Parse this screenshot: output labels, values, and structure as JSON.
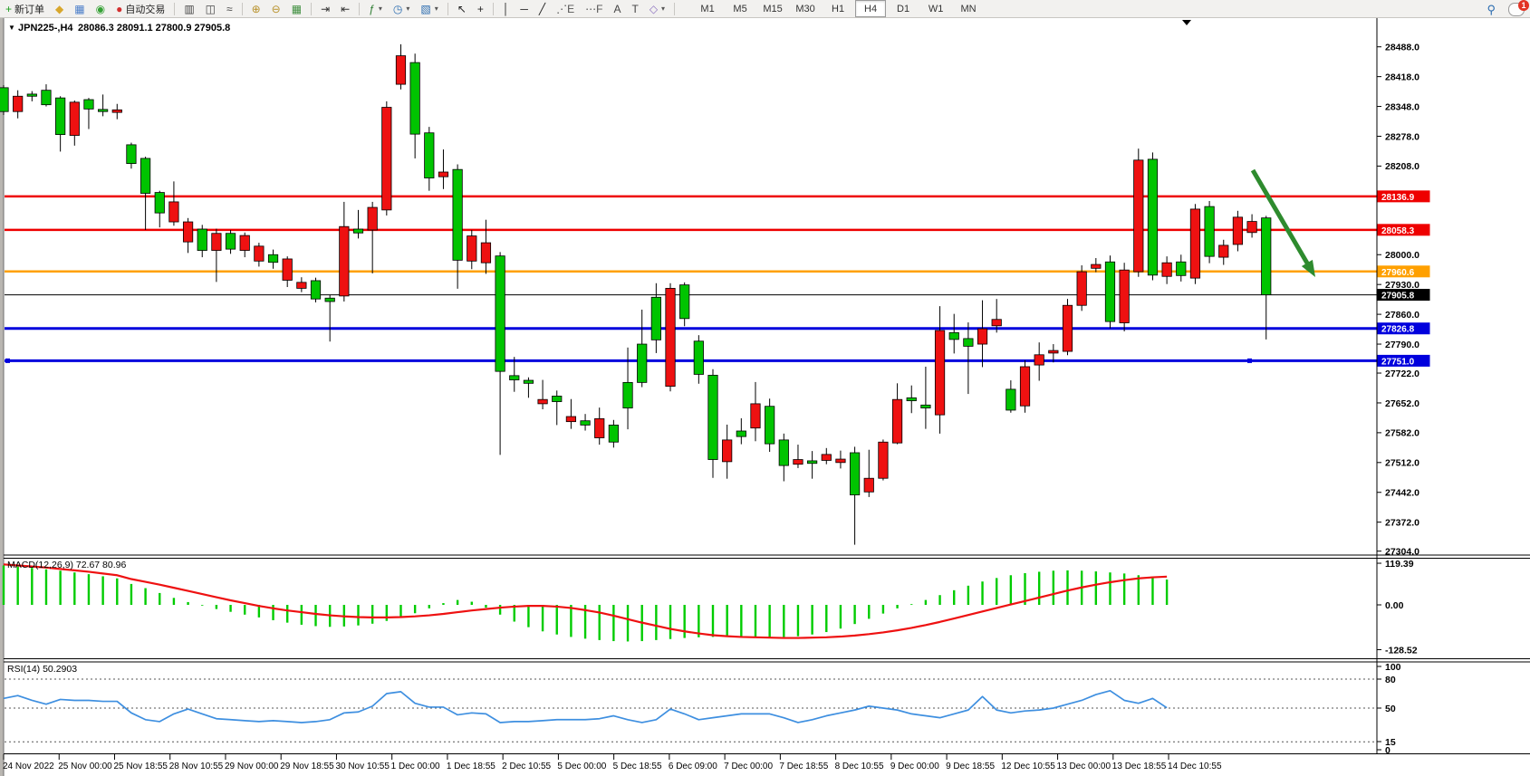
{
  "toolbar": {
    "items": [
      {
        "name": "new-order-button",
        "glyph": "+",
        "glyph_color": "#1e9e1e",
        "label": "新订单",
        "interactable": true
      },
      {
        "name": "styler-icon",
        "glyph": "◆",
        "glyph_color": "#d8a72c",
        "interactable": true
      },
      {
        "name": "charts-window-icon",
        "glyph": "▦",
        "glyph_color": "#4a7dc9",
        "interactable": true
      },
      {
        "name": "signals-icon",
        "glyph": "◉",
        "glyph_color": "#35a135",
        "interactable": true
      },
      {
        "name": "autotrading-button",
        "glyph": "●",
        "glyph_color": "#d32f2f",
        "label": "自动交易",
        "interactable": true
      },
      {
        "name": "sep",
        "sep": true
      },
      {
        "name": "bar-chart-button",
        "glyph": "▥",
        "glyph_color": "#444",
        "interactable": true
      },
      {
        "name": "candlestick-chart-button",
        "glyph": "◫",
        "glyph_color": "#444",
        "interactable": true
      },
      {
        "name": "line-chart-button",
        "glyph": "≈",
        "glyph_color": "#444",
        "interactable": true
      },
      {
        "name": "sep",
        "sep": true
      },
      {
        "name": "zoom-in-button",
        "glyph": "⊕",
        "glyph_color": "#b8912a",
        "interactable": true
      },
      {
        "name": "zoom-out-button",
        "glyph": "⊖",
        "glyph_color": "#b8912a",
        "interactable": true
      },
      {
        "name": "tile-windows-button",
        "glyph": "▦",
        "glyph_color": "#3f8f3f",
        "interactable": true
      },
      {
        "name": "sep",
        "sep": true
      },
      {
        "name": "auto-scroll-button",
        "glyph": "⇥",
        "glyph_color": "#333",
        "interactable": true
      },
      {
        "name": "chart-shift-button",
        "glyph": "⇤",
        "glyph_color": "#333",
        "interactable": true
      },
      {
        "name": "sep",
        "sep": true
      },
      {
        "name": "indicators-menu",
        "glyph": "ƒ",
        "glyph_color": "#2e7d32",
        "dropdown": true,
        "interactable": true
      },
      {
        "name": "periods-menu",
        "glyph": "◷",
        "glyph_color": "#2b6cb0",
        "dropdown": true,
        "interactable": true
      },
      {
        "name": "templates-menu",
        "glyph": "▧",
        "glyph_color": "#2b6cb0",
        "dropdown": true,
        "interactable": true
      },
      {
        "name": "sep",
        "sep": true
      },
      {
        "name": "cursor-tool",
        "glyph": "↖",
        "glyph_color": "#222",
        "interactable": true
      },
      {
        "name": "crosshair-tool",
        "glyph": "+",
        "glyph_color": "#222",
        "interactable": true
      },
      {
        "name": "sep",
        "sep": true
      },
      {
        "name": "vertical-line-tool",
        "glyph": "│",
        "glyph_color": "#222",
        "interactable": true
      },
      {
        "name": "horizontal-line-tool",
        "glyph": "─",
        "glyph_color": "#222",
        "interactable": true
      },
      {
        "name": "trendline-tool",
        "glyph": "╱",
        "glyph_color": "#222",
        "interactable": true
      },
      {
        "name": "channel-tool",
        "glyph": "⋰E",
        "glyph_color": "#555",
        "interactable": true
      },
      {
        "name": "fibonacci-tool",
        "glyph": "⋯F",
        "glyph_color": "#555",
        "interactable": true
      },
      {
        "name": "text-tool",
        "glyph": "A",
        "glyph_color": "#444",
        "interactable": true
      },
      {
        "name": "label-tool",
        "glyph": "T",
        "glyph_color": "#444",
        "interactable": true
      },
      {
        "name": "shapes-menu",
        "glyph": "◇",
        "glyph_color": "#8a6fbf",
        "dropdown": true,
        "interactable": true
      },
      {
        "name": "sep",
        "sep": true
      }
    ],
    "timeframes": [
      "M1",
      "M5",
      "M15",
      "M30",
      "H1",
      "H4",
      "D1",
      "W1",
      "MN"
    ],
    "active_timeframe": "H4",
    "search_icon_glyph": "⚲",
    "notification_count": "1"
  },
  "chart": {
    "title_symbol": "JPN225-,H4",
    "title_ohlc": "28086.3 28091.1 27800.9 27905.8",
    "dropdown_glyph": "▼"
  },
  "chart_data": {
    "type": "candlestick",
    "symbol": "JPN225-",
    "period": "H4",
    "ohlc_display": {
      "open": 28086.3,
      "high": 28091.1,
      "low": 27800.9,
      "close": 27905.8
    },
    "y_axis_labels": [
      "28488.0",
      "28418.0",
      "28348.0",
      "28278.0",
      "28208.0",
      "28000.0",
      "27930.0",
      "27860.0",
      "27790.0",
      "27722.0",
      "27652.0",
      "27582.0",
      "27512.0",
      "27442.0",
      "27372.0",
      "27304.0"
    ],
    "y_axis_prices": [
      28488,
      28418,
      28348,
      28278,
      28208,
      28000,
      27930,
      27860,
      27790,
      27722,
      27652,
      27582,
      27512,
      27442,
      27372,
      27304
    ],
    "x_axis_labels": [
      "24 Nov 2022",
      "25 Nov 00:00",
      "25 Nov 18:55",
      "28 Nov 10:55",
      "29 Nov 00:00",
      "29 Nov 18:55",
      "30 Nov 10:55",
      "1 Dec 00:00",
      "1 Dec 18:55",
      "2 Dec 10:55",
      "5 Dec 00:00",
      "5 Dec 18:55",
      "6 Dec 09:00",
      "7 Dec 00:00",
      "7 Dec 18:55",
      "8 Dec 10:55",
      "9 Dec 00:00",
      "9 Dec 18:55",
      "12 Dec 10:55",
      "13 Dec 00:00",
      "13 Dec 18:55",
      "14 Dec 10:55"
    ],
    "levels": [
      {
        "price": 28136.9,
        "label": "28136.9",
        "color": "#EE0000",
        "width": 2.5
      },
      {
        "price": 28058.3,
        "label": "28058.3",
        "color": "#EE0000",
        "width": 2.5
      },
      {
        "price": 27960.6,
        "label": "27960.6",
        "color": "#FFA000",
        "width": 2.5
      },
      {
        "price": 27905.8,
        "label": "27905.8",
        "color": "#000000",
        "width": 1,
        "current": true
      },
      {
        "price": 27826.8,
        "label": "27826.8",
        "color": "#0000DD",
        "width": 3
      },
      {
        "price": 27751.0,
        "label": "27751.0",
        "color": "#0000DD",
        "width": 3,
        "handles": true
      }
    ],
    "candle_up_color": "#00C400",
    "candle_down_color": "#EE1111",
    "candles": [
      [
        28336,
        28398,
        28328,
        28392,
        1
      ],
      [
        28372,
        28386,
        28320,
        28336,
        0
      ],
      [
        28372,
        28384,
        28360,
        28377,
        1
      ],
      [
        28352,
        28400,
        28348,
        28386,
        1
      ],
      [
        28282,
        28372,
        28242,
        28368,
        1
      ],
      [
        28358,
        28362,
        28256,
        28280,
        0
      ],
      [
        28342,
        28368,
        28295,
        28364,
        1
      ],
      [
        28336,
        28376,
        28325,
        28341,
        1
      ],
      [
        28340,
        28354,
        28318,
        28334,
        0
      ],
      [
        28214,
        28263,
        28202,
        28258,
        1
      ],
      [
        28144,
        28230,
        28058,
        28226,
        1
      ],
      [
        28098,
        28150,
        28064,
        28146,
        1
      ],
      [
        28124,
        28172,
        28068,
        28077,
        0
      ],
      [
        28077,
        28086,
        28004,
        28030,
        0
      ],
      [
        28010,
        28070,
        27994,
        28060,
        1
      ],
      [
        28050,
        28061,
        27936,
        28010,
        0
      ],
      [
        28013,
        28058,
        28002,
        28050,
        1
      ],
      [
        28045,
        28052,
        27994,
        28010,
        0
      ],
      [
        28020,
        28028,
        27972,
        27985,
        0
      ],
      [
        27982,
        28012,
        27967,
        28000,
        1
      ],
      [
        27990,
        27996,
        27924,
        27940,
        0
      ],
      [
        27935,
        27947,
        27912,
        27921,
        0
      ],
      [
        27896,
        27946,
        27888,
        27939,
        1
      ],
      [
        27890,
        27906,
        27796,
        27898,
        1
      ],
      [
        28066,
        28124,
        27890,
        27903,
        0
      ],
      [
        28051,
        28105,
        28038,
        28060,
        1
      ],
      [
        28111,
        28124,
        27956,
        28058,
        0
      ],
      [
        28346,
        28360,
        28092,
        28105,
        0
      ],
      [
        28467,
        28494,
        28388,
        28400,
        0
      ],
      [
        28283,
        28472,
        28226,
        28451,
        1
      ],
      [
        28180,
        28300,
        28150,
        28286,
        1
      ],
      [
        28194,
        28247,
        28154,
        28183,
        0
      ],
      [
        27987,
        28212,
        27920,
        28200,
        1
      ],
      [
        28044,
        28058,
        27966,
        27985,
        0
      ],
      [
        28028,
        28082,
        27955,
        27981,
        0
      ],
      [
        27726,
        28006,
        27530,
        27997,
        1
      ],
      [
        27706,
        27760,
        27678,
        27716,
        1
      ],
      [
        27698,
        27712,
        27664,
        27705,
        1
      ],
      [
        27660,
        27706,
        27637,
        27650,
        0
      ],
      [
        27655,
        27681,
        27600,
        27668,
        1
      ],
      [
        27620,
        27661,
        27591,
        27608,
        0
      ],
      [
        27600,
        27626,
        27587,
        27610,
        1
      ],
      [
        27615,
        27641,
        27554,
        27570,
        0
      ],
      [
        27560,
        27612,
        27547,
        27600,
        1
      ],
      [
        27640,
        27782,
        27590,
        27700,
        1
      ],
      [
        27700,
        27871,
        27689,
        27790,
        1
      ],
      [
        27800,
        27933,
        27769,
        27900,
        1
      ],
      [
        27921,
        27933,
        27679,
        27691,
        0
      ],
      [
        27850,
        27935,
        27832,
        27929,
        1
      ],
      [
        27719,
        27811,
        27697,
        27797,
        1
      ],
      [
        27519,
        27731,
        27476,
        27717,
        1
      ],
      [
        27565,
        27601,
        27474,
        27514,
        0
      ],
      [
        27573,
        27616,
        27555,
        27586,
        1
      ],
      [
        27650,
        27701,
        27562,
        27593,
        0
      ],
      [
        27556,
        27662,
        27537,
        27644,
        1
      ],
      [
        27505,
        27580,
        27468,
        27565,
        1
      ],
      [
        27519,
        27554,
        27499,
        27508,
        0
      ],
      [
        27510,
        27539,
        27474,
        27516,
        1
      ],
      [
        27531,
        27546,
        27508,
        27517,
        0
      ],
      [
        27520,
        27540,
        27498,
        27512,
        0
      ],
      [
        27436,
        27549,
        27319,
        27535,
        1
      ],
      [
        27475,
        27542,
        27431,
        27443,
        0
      ],
      [
        27560,
        27566,
        27470,
        27475,
        0
      ],
      [
        27660,
        27698,
        27555,
        27558,
        0
      ],
      [
        27657,
        27693,
        27628,
        27664,
        1
      ],
      [
        27640,
        27737,
        27591,
        27647,
        1
      ],
      [
        27822,
        27879,
        27580,
        27624,
        0
      ],
      [
        27801,
        27861,
        27768,
        27817,
        1
      ],
      [
        27785,
        27841,
        27673,
        27803,
        1
      ],
      [
        27826,
        27893,
        27736,
        27790,
        0
      ],
      [
        27848,
        27896,
        27817,
        27833,
        0
      ],
      [
        27635,
        27705,
        27629,
        27684,
        1
      ],
      [
        27737,
        27752,
        27629,
        27645,
        0
      ],
      [
        27765,
        27794,
        27704,
        27741,
        0
      ],
      [
        27775,
        27790,
        27747,
        27769,
        0
      ],
      [
        27881,
        27896,
        27764,
        27773,
        0
      ],
      [
        27960,
        27975,
        27868,
        27881,
        0
      ],
      [
        27977,
        27992,
        27959,
        27968,
        0
      ],
      [
        27843,
        27998,
        27827,
        27983,
        1
      ],
      [
        27964,
        27981,
        27820,
        27840,
        0
      ],
      [
        28222,
        28249,
        27948,
        27960,
        0
      ],
      [
        27952,
        28240,
        27940,
        28224,
        1
      ],
      [
        27981,
        27996,
        27931,
        27949,
        0
      ],
      [
        27951,
        28000,
        27937,
        27983,
        1
      ],
      [
        28107,
        28119,
        27931,
        27945,
        0
      ],
      [
        27996,
        28126,
        27980,
        28113,
        1
      ],
      [
        28022,
        28035,
        27976,
        27994,
        0
      ],
      [
        28088,
        28103,
        28008,
        28024,
        0
      ],
      [
        28078,
        28095,
        28040,
        28052,
        0
      ],
      [
        28086.3,
        28091.1,
        27800.9,
        27905.8,
        1
      ]
    ],
    "annotation_arrow": {
      "color": "#2E8B2E",
      "from": [
        1383,
        188
      ],
      "to": [
        1452,
        306
      ]
    },
    "indicators": [
      {
        "name": "MACD",
        "label": "MACD(12,26,9) 72.67 80.96",
        "params": [
          12,
          26,
          9
        ],
        "main_value": 72.67,
        "signal_value": 80.96,
        "axis_ticks": [
          "119.39",
          "0.00",
          "-128.52"
        ],
        "axis_tick_values": [
          119.39,
          0,
          -128.52
        ],
        "histogram_color": "#00CC00",
        "signal_color": "#EE1111",
        "histogram": [
          113,
          110,
          106,
          102,
          98,
          93,
          88,
          82,
          76,
          60,
          48,
          34,
          20,
          8,
          -2,
          -12,
          -20,
          -28,
          -36,
          -44,
          -51,
          -57,
          -61,
          -63,
          -62,
          -59,
          -54,
          -46,
          -36,
          -24,
          -10,
          5,
          14,
          9,
          -8,
          -28,
          -48,
          -64,
          -76,
          -85,
          -92,
          -97,
          -101,
          -104,
          -105,
          -104,
          -101,
          -98,
          -95,
          -93,
          -92,
          -91,
          -91,
          -92,
          -93,
          -92,
          -90,
          -85,
          -78,
          -68,
          -55,
          -40,
          -25,
          -10,
          2,
          14,
          28,
          42,
          55,
          67,
          77,
          85,
          91,
          95,
          98,
          99,
          98,
          96,
          93,
          90,
          85,
          79,
          72.67
        ],
        "signal": [
          116,
          113,
          110,
          107,
          103,
          99,
          95,
          90,
          85,
          74,
          66,
          58,
          49,
          40,
          31,
          22,
          13,
          5,
          -3,
          -10,
          -16,
          -21,
          -26,
          -30,
          -33,
          -35,
          -36,
          -36,
          -35,
          -33,
          -30,
          -26,
          -21,
          -16,
          -12,
          -8,
          -5,
          -3,
          -3,
          -5,
          -9,
          -15,
          -22,
          -31,
          -41,
          -51,
          -60,
          -69,
          -76,
          -82,
          -87,
          -90,
          -92,
          -93,
          -94,
          -95,
          -95,
          -94,
          -93,
          -91,
          -88,
          -84,
          -79,
          -73,
          -66,
          -58,
          -49,
          -39,
          -29,
          -19,
          -9,
          1,
          11,
          21,
          31,
          41,
          50,
          58,
          65,
          71,
          76,
          79,
          81
        ]
      },
      {
        "name": "RSI",
        "label": "RSI(14) 50.2903",
        "params": [
          14
        ],
        "value": 50.2903,
        "axis_ticks": [
          "100",
          "80",
          "50",
          "15",
          "0"
        ],
        "level_lines": [
          80,
          50,
          15
        ],
        "line_color": "#3E8FE0",
        "values": [
          60,
          63,
          58,
          54,
          59,
          58,
          58,
          57,
          57,
          45,
          38,
          36,
          44,
          49,
          44,
          39,
          38,
          37,
          36,
          37,
          36,
          35,
          36,
          38,
          45,
          46,
          52,
          65,
          67,
          55,
          51,
          51,
          43,
          45,
          44,
          35,
          36,
          36,
          37,
          38,
          38,
          38,
          39,
          42,
          38,
          35,
          38,
          49,
          44,
          38,
          40,
          42,
          44,
          44,
          44,
          40,
          35,
          38,
          42,
          45,
          48,
          52,
          50,
          48,
          44,
          42,
          40,
          44,
          48,
          62,
          48,
          45,
          47,
          48,
          50,
          54,
          58,
          64,
          68,
          58,
          55,
          60,
          50.29
        ]
      }
    ]
  }
}
